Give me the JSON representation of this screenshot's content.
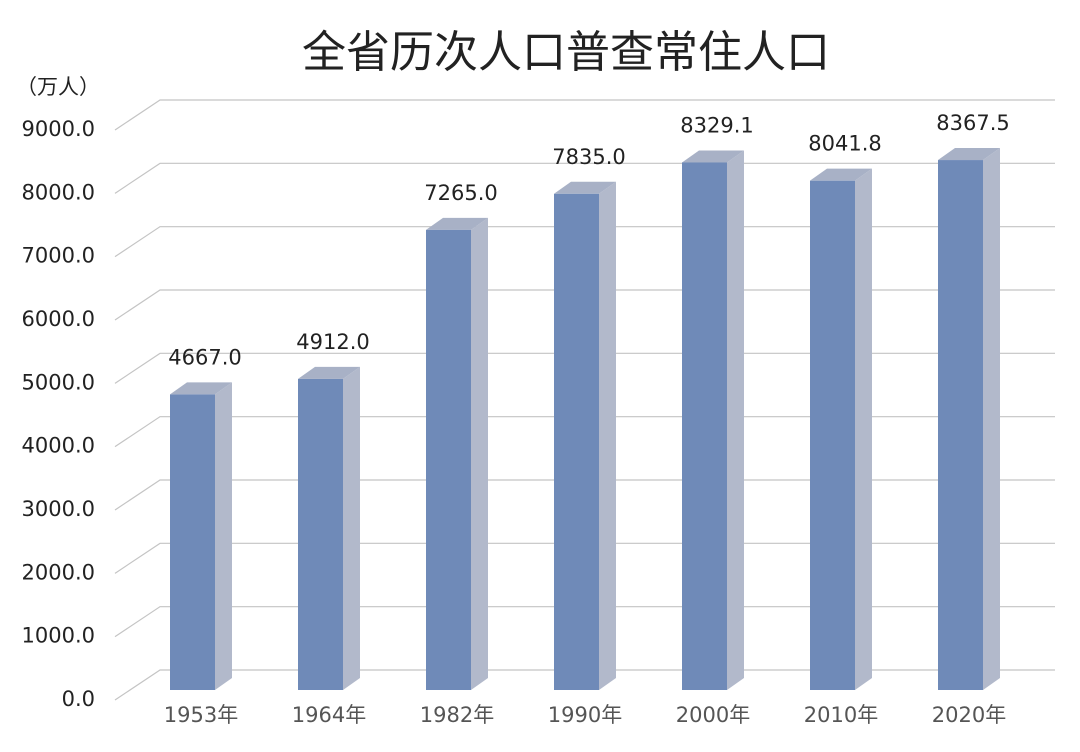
{
  "chart_data": {
    "type": "bar3d",
    "title": "全省历次人口普查常住人口",
    "y_label": "（万人）",
    "categories": [
      "1953年",
      "1964年",
      "1982年",
      "1990年",
      "2000年",
      "2010年",
      "2020年"
    ],
    "values": [
      4667.0,
      4912.0,
      7265.0,
      7835.0,
      8329.1,
      8041.8,
      8367.5
    ],
    "value_labels": [
      "4667.0",
      "4912.0",
      "7265.0",
      "7835.0",
      "8329.1",
      "8041.8",
      "8367.5"
    ],
    "color": "#6f8ab8",
    "side_color": "#b2b9cb",
    "top_color": "#a8b1c6",
    "ylim": [
      0,
      9000
    ],
    "yticks": [
      {
        "value": 0,
        "label": "0.0"
      },
      {
        "value": 1000,
        "label": "1000.0"
      },
      {
        "value": 2000,
        "label": "2000.0"
      },
      {
        "value": 3000,
        "label": "3000.0"
      },
      {
        "value": 4000,
        "label": "4000.0"
      },
      {
        "value": 5000,
        "label": "5000.0"
      },
      {
        "value": 6000,
        "label": "6000.0"
      },
      {
        "value": 7000,
        "label": "7000.0"
      },
      {
        "value": 8000,
        "label": "8000.0"
      },
      {
        "value": 9000,
        "label": "9000.0"
      }
    ],
    "grid": true
  }
}
